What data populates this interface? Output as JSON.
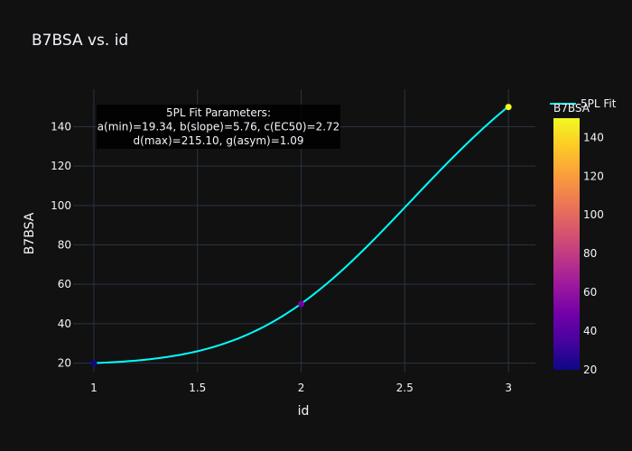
{
  "chart_data": {
    "type": "scatter",
    "title": "B7BSA vs. id",
    "xlabel": "id",
    "ylabel": "B7BSA",
    "xlim": [
      0.9,
      3.13
    ],
    "ylim": [
      15.2,
      159
    ],
    "xticks": [
      1,
      1.5,
      2,
      2.5,
      3
    ],
    "xtick_labels": [
      "1",
      "1.5",
      "2",
      "2.5",
      "3"
    ],
    "yticks": [
      20,
      40,
      60,
      80,
      100,
      120,
      140
    ],
    "ytick_labels": [
      "20",
      "40",
      "60",
      "80",
      "100",
      "120",
      "140"
    ],
    "grid": true,
    "points": [
      {
        "x": 1,
        "y": 19.9
      },
      {
        "x": 2,
        "y": 50
      },
      {
        "x": 3,
        "y": 150
      }
    ],
    "fit_series": {
      "name": "5PL Fit",
      "color": "#00ffff",
      "params": {
        "a": 19.34,
        "b": 5.76,
        "c": 2.72,
        "d": 215.1,
        "g": 1.09
      }
    },
    "annotation": [
      "5PL Fit Parameters:",
      "a(min)=19.34, b(slope)=5.76, c(EC50)=2.72",
      "d(max)=215.10, g(asym)=1.09"
    ],
    "legend": {
      "position": "top-right",
      "entries": [
        "5PL Fit"
      ]
    },
    "colorbar": {
      "title": "B7BSA",
      "range": [
        19.9,
        150
      ],
      "ticks": [
        20,
        40,
        60,
        80,
        100,
        120,
        140
      ],
      "tick_labels": [
        "20",
        "40",
        "60",
        "80",
        "100",
        "120",
        "140"
      ],
      "colorscale": [
        "#0d0887",
        "#46039f",
        "#7201a8",
        "#9c179e",
        "#bd3786",
        "#d8576b",
        "#ed7953",
        "#fb9f3a",
        "#fdca26",
        "#f0f921"
      ]
    }
  }
}
